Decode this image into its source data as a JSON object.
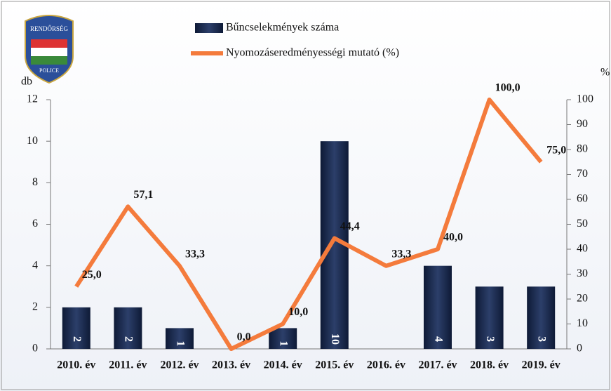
{
  "logo": {
    "top": "RENDŐRSÉG",
    "bottom": "POLICE"
  },
  "chart_data": {
    "type": "bar-line",
    "y_label": "db",
    "y2_label": "%",
    "categories": [
      "2010. év",
      "2011. év",
      "2012. év",
      "2013. év",
      "2014. év",
      "2015. év",
      "2016. év",
      "2017. év",
      "2018. év",
      "2019. év"
    ],
    "series": [
      {
        "name": "Bűncselekmények száma",
        "type": "bar",
        "color": "#1b2a4e",
        "values": [
          2,
          2,
          1,
          0,
          1,
          10,
          0,
          4,
          3,
          3
        ]
      },
      {
        "name": "Nyomozáseredményességi mutató (%)",
        "type": "line",
        "axis": "y2",
        "color": "#f47b3c",
        "values": [
          25.0,
          57.1,
          33.3,
          0.0,
          10.0,
          44.4,
          33.3,
          40.0,
          100.0,
          75.0
        ],
        "value_labels": [
          "25,0",
          "57,1",
          "33,3",
          "0,0",
          "10,0",
          "44,4",
          "33,3",
          "40,0",
          "100,0",
          "75,0"
        ]
      }
    ],
    "ylim": [
      0,
      12
    ],
    "yticks": [
      0,
      2,
      4,
      6,
      8,
      10,
      12
    ],
    "y2lim": [
      0,
      100
    ],
    "y2ticks": [
      0,
      10,
      20,
      30,
      40,
      50,
      60,
      70,
      80,
      90,
      100
    ]
  }
}
